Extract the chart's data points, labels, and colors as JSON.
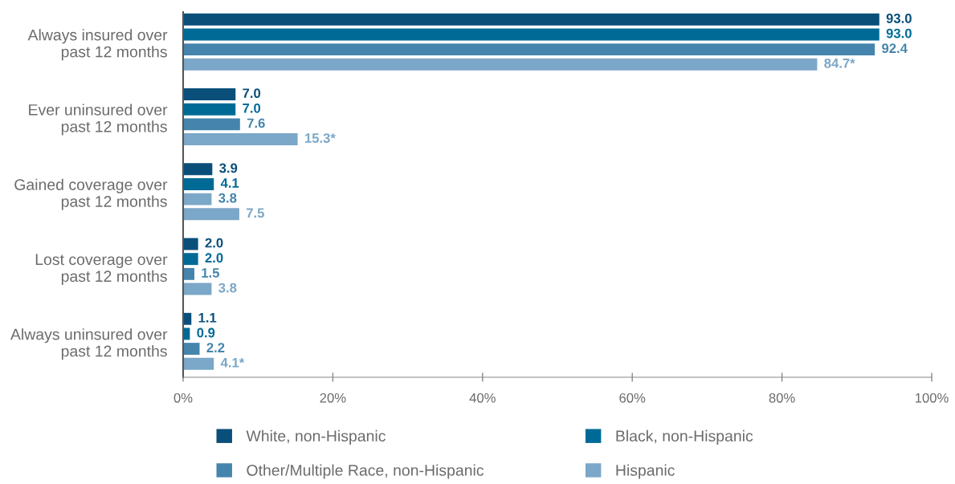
{
  "chart_data": {
    "type": "bar",
    "orientation": "horizontal",
    "categories": [
      "Always insured over\npast 12 months",
      "Ever uninsured over\npast 12 months",
      "Gained coverage over\npast 12 months",
      "Lost coverage over\npast 12 months",
      "Always uninsured over\npast 12 months"
    ],
    "series": [
      {
        "name": "White, non-Hispanic",
        "color": "#0a4f7a",
        "values": [
          93.0,
          7.0,
          3.9,
          2.0,
          1.1
        ],
        "value_labels": [
          "93.0",
          "7.0",
          "3.9",
          "2.0",
          "1.1"
        ]
      },
      {
        "name": "Black, non-Hispanic",
        "color": "#006a96",
        "values": [
          93.0,
          7.0,
          4.1,
          2.0,
          0.9
        ],
        "value_labels": [
          "93.0",
          "7.0",
          "4.1",
          "2.0",
          "0.9"
        ]
      },
      {
        "name": "Other/Multiple Race, non-Hispanic",
        "color": "#4585ad",
        "colors": [
          "#4585ad",
          "#4585ad",
          "#7ba7c8",
          "#4585ad",
          "#4585ad"
        ],
        "values": [
          92.4,
          7.6,
          3.8,
          1.5,
          2.2
        ],
        "value_labels": [
          "92.4",
          "7.6",
          "3.8",
          "1.5",
          "2.2"
        ]
      },
      {
        "name": "Hispanic",
        "color": "#7ba7c8",
        "values": [
          84.7,
          15.3,
          7.5,
          3.8,
          4.1
        ],
        "value_labels": [
          "84.7*",
          "15.3*",
          "7.5",
          "3.8",
          "4.1*"
        ]
      }
    ],
    "xlim": [
      0,
      100
    ],
    "xticks": [
      {
        "value": 0,
        "label": "0%"
      },
      {
        "value": 20,
        "label": "20%"
      },
      {
        "value": 40,
        "label": "40%"
      },
      {
        "value": 60,
        "label": "60%"
      },
      {
        "value": 80,
        "label": "80%"
      },
      {
        "value": 100,
        "label": "100%"
      }
    ],
    "grid": false,
    "legend": "bottom"
  }
}
